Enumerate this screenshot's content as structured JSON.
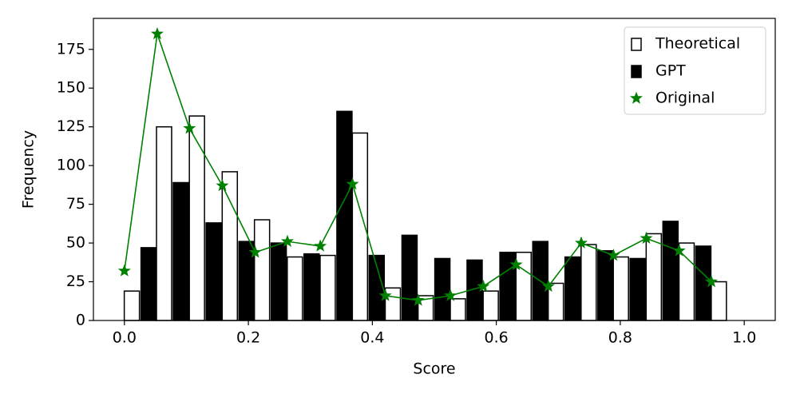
{
  "chart_data": {
    "type": "bar",
    "x_label": "Score",
    "y_label": "Frequency",
    "xlim": [
      -0.05,
      1.05
    ],
    "ylim": [
      0,
      195
    ],
    "xticks": [
      {
        "value": 0,
        "label": "0.0"
      },
      {
        "value": 0.2,
        "label": "0.2"
      },
      {
        "value": 0.4,
        "label": "0.4"
      },
      {
        "value": 0.6,
        "label": "0.6"
      },
      {
        "value": 0.8,
        "label": "0.8"
      },
      {
        "value": 1,
        "label": "1.0"
      }
    ],
    "yticks": [
      0,
      25,
      50,
      75,
      100,
      125,
      150,
      175
    ],
    "legend": "upper right",
    "series": [
      {
        "name": "Theoretical",
        "type": "bar",
        "color": "#ffffff",
        "edgecolor": "#000000",
        "x": [
          0.012,
          0.064,
          0.117,
          0.17,
          0.222,
          0.275,
          0.328,
          0.38,
          0.433,
          0.486,
          0.538,
          0.591,
          0.644,
          0.696,
          0.749,
          0.801,
          0.854,
          0.907,
          0.959
        ],
        "values": [
          19,
          125,
          132,
          96,
          65,
          41,
          42,
          121,
          21,
          16,
          14,
          19,
          44,
          24,
          49,
          41,
          56,
          50,
          25
        ]
      },
      {
        "name": "GPT",
        "type": "bar",
        "color": "#000000",
        "edgecolor": "#000000",
        "x": [
          0.039,
          0.091,
          0.144,
          0.197,
          0.249,
          0.302,
          0.355,
          0.407,
          0.46,
          0.513,
          0.565,
          0.618,
          0.671,
          0.723,
          0.776,
          0.828,
          0.881,
          0.934
        ],
        "values": [
          47,
          89,
          63,
          51,
          50,
          43,
          135,
          42,
          55,
          40,
          39,
          44,
          51,
          41,
          45,
          40,
          64,
          48
        ]
      },
      {
        "name": "Original",
        "type": "line",
        "marker": "star",
        "color": "#008000",
        "x": [
          0,
          0.053,
          0.105,
          0.158,
          0.211,
          0.263,
          0.316,
          0.368,
          0.421,
          0.474,
          0.526,
          0.579,
          0.632,
          0.684,
          0.737,
          0.789,
          0.842,
          0.895,
          0.947
        ],
        "values": [
          32,
          185,
          124,
          87,
          44,
          51,
          48,
          88,
          16,
          13,
          16,
          22,
          36,
          22,
          50,
          42,
          53,
          45,
          25
        ]
      }
    ]
  }
}
